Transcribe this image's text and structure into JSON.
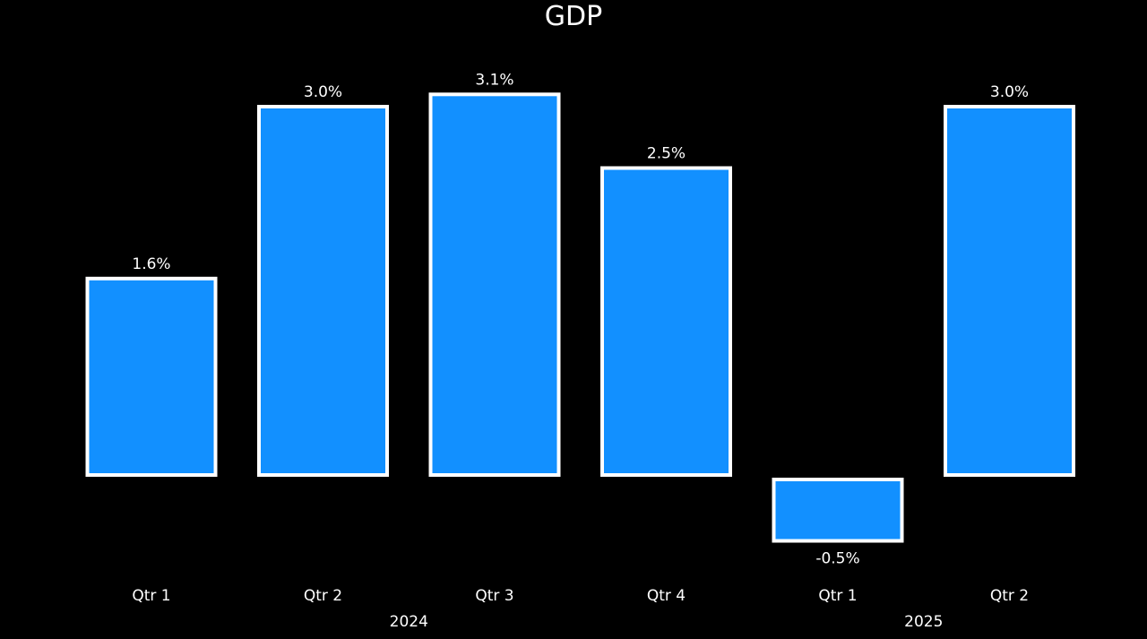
{
  "chart_data": {
    "type": "bar",
    "title": "GDP",
    "categories": [
      "Qtr 1",
      "Qtr 2",
      "Qtr 3",
      "Qtr 4",
      "Qtr 1",
      "Qtr 2"
    ],
    "groups": [
      {
        "label": "2024",
        "span": [
          0,
          3
        ]
      },
      {
        "label": "2025",
        "span": [
          4,
          5
        ]
      }
    ],
    "values": [
      1.6,
      3.0,
      3.1,
      2.5,
      -0.5,
      3.0
    ],
    "data_labels": [
      "1.6%",
      "3.0%",
      "3.1%",
      "2.5%",
      "-0.5%",
      "3.0%"
    ],
    "ylim": [
      -0.5,
      3.1
    ],
    "grid": false,
    "bar_color": "#1290FF",
    "bar_outline": "#FFFFFF",
    "background": "#000000"
  }
}
